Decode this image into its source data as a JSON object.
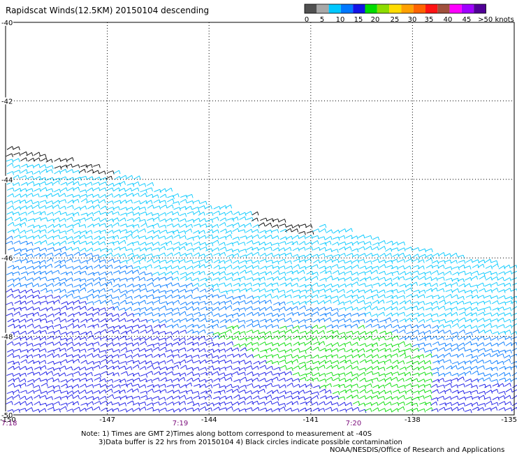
{
  "title": "Rapidscat Winds(12.5KM) 20150104 descending",
  "legend": {
    "colors": [
      "#505050",
      "#a8a8a8",
      "#00c8ff",
      "#0078ff",
      "#1414e6",
      "#00dc00",
      "#8cdc00",
      "#ffdc00",
      "#ffa000",
      "#ff6400",
      "#ff1414",
      "#a0503c",
      "#ff00ff",
      "#a000ff",
      "#500096"
    ],
    "labels": [
      "0",
      "5",
      "10",
      "15",
      "20",
      "25",
      "30",
      "35",
      "40",
      "45",
      ">50 knots"
    ]
  },
  "axes": {
    "lat_labels": [
      "-40",
      "-42",
      "-44",
      "-46",
      "-48",
      "-50"
    ],
    "lon_labels": [
      "-150",
      "-147",
      "-144",
      "-141",
      "-138",
      "-135"
    ],
    "time_labels": [
      "7:18",
      "7:19",
      "7:20"
    ]
  },
  "map_data": {
    "lat_range": [
      -50,
      -40
    ],
    "lon_range": [
      -150,
      -135
    ],
    "grid": "dotted, every 3 deg lon and 2 deg lat",
    "swath_color_zones": [
      {
        "name": "black",
        "desc": "northern edge, low winds / possible contamination"
      },
      {
        "name": "cyan",
        "desc": "10-15 knots"
      },
      {
        "name": "blue",
        "desc": "15-20 knots"
      },
      {
        "name": "green",
        "desc": "20-25 knots"
      }
    ]
  },
  "notes": {
    "line1": "Note: 1) Times are GMT 2)Times along bottom correspond to measurement at -40S",
    "line2": "3)Data buffer is 22 hrs from 20150104 4) Black circles indicate possible contamination",
    "credit": "NOAA/NESDIS/Office of Research and Applications"
  }
}
